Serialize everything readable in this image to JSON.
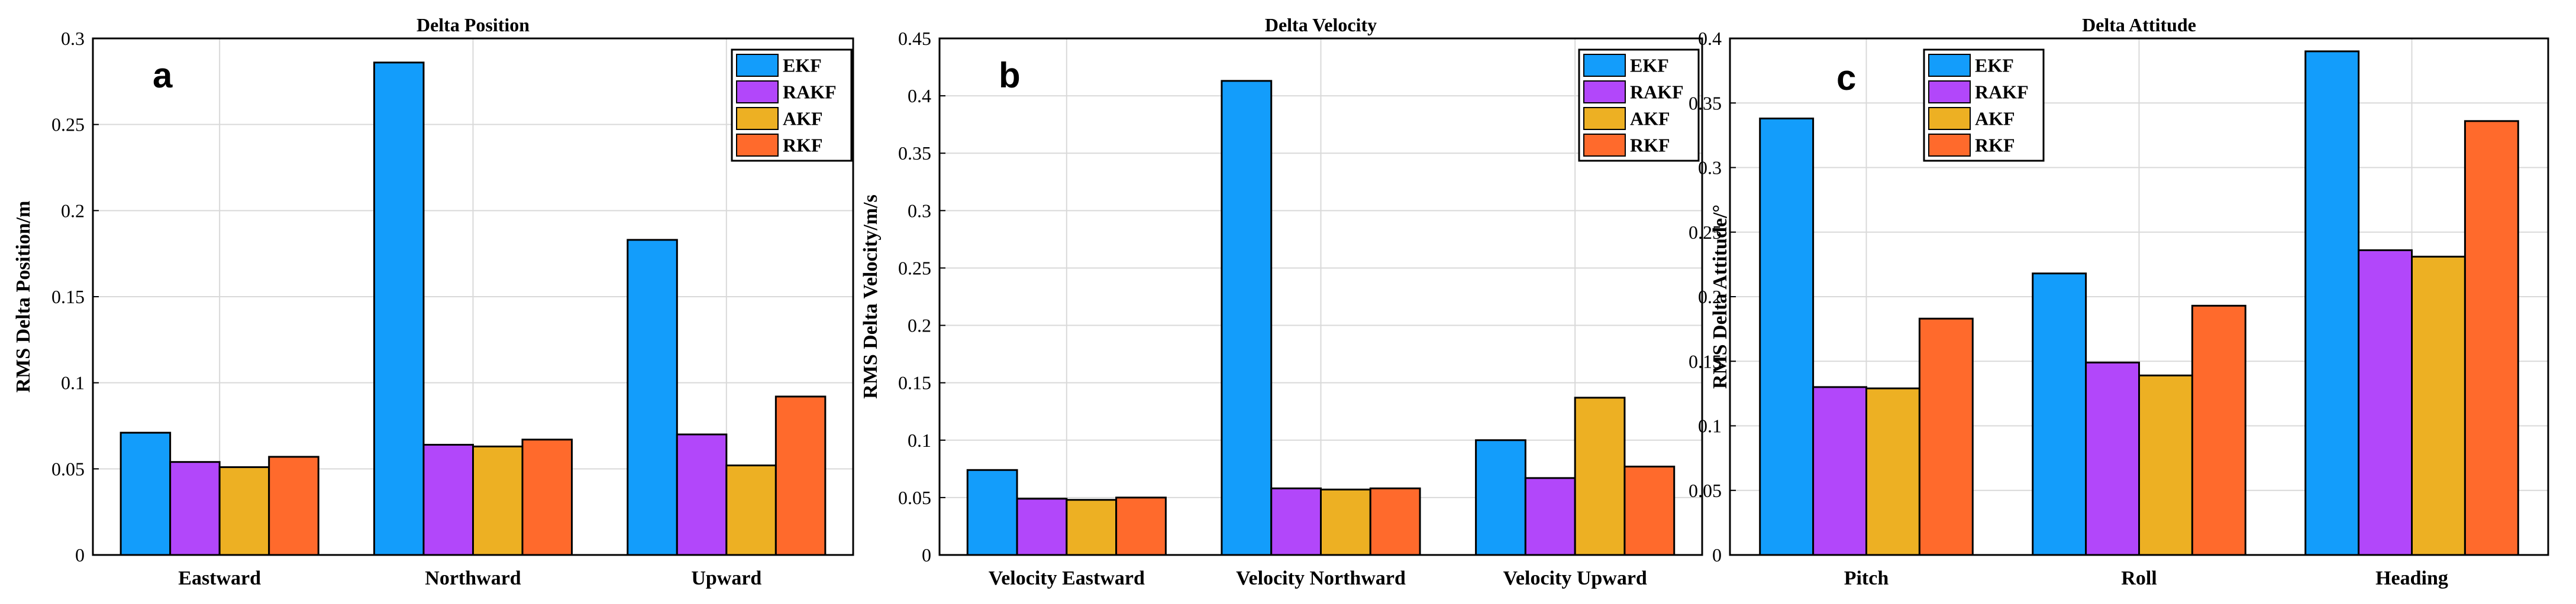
{
  "legend": [
    "EKF",
    "RAKF",
    "AKF",
    "RKF"
  ],
  "colors": {
    "EKF": "#139dfb",
    "RAKF": "#b247fa",
    "AKF": "#edb023",
    "RKF": "#ff6a2c"
  },
  "chart_data": [
    {
      "type": "bar",
      "panel_label": "a",
      "title": "Delta Position",
      "ylabel": "RMS Delta Position/m",
      "xlabel": "",
      "categories": [
        "Eastward",
        "Northward",
        "Upward"
      ],
      "ylim": [
        0,
        0.3
      ],
      "yticks": [
        0,
        0.05,
        0.1,
        0.15,
        0.2,
        0.25,
        0.3
      ],
      "ytick_labels": [
        "0",
        "0.05",
        "0.1",
        "0.15",
        "0.2",
        "0.25",
        "0.3"
      ],
      "legend_position": "top-right",
      "grid": true,
      "series": [
        {
          "name": "EKF",
          "values": [
            0.071,
            0.286,
            0.183
          ]
        },
        {
          "name": "RAKF",
          "values": [
            0.054,
            0.064,
            0.07
          ]
        },
        {
          "name": "AKF",
          "values": [
            0.051,
            0.063,
            0.052
          ]
        },
        {
          "name": "RKF",
          "values": [
            0.057,
            0.067,
            0.092
          ]
        }
      ]
    },
    {
      "type": "bar",
      "panel_label": "b",
      "title": "Delta Velocity",
      "ylabel": "RMS Delta Velocity/m/s",
      "xlabel": "",
      "categories": [
        "Velocity Eastward",
        "Velocity Northward",
        "Velocity Upward"
      ],
      "ylim": [
        0,
        0.45
      ],
      "yticks": [
        0,
        0.05,
        0.1,
        0.15,
        0.2,
        0.25,
        0.3,
        0.35,
        0.4,
        0.45
      ],
      "ytick_labels": [
        "0",
        "0.05",
        "0.1",
        "0.15",
        "0.2",
        "0.25",
        "0.3",
        "0.35",
        "0.4",
        "0.45"
      ],
      "legend_position": "top-right",
      "grid": true,
      "series": [
        {
          "name": "EKF",
          "values": [
            0.074,
            0.413,
            0.1
          ]
        },
        {
          "name": "RAKF",
          "values": [
            0.049,
            0.058,
            0.067
          ]
        },
        {
          "name": "AKF",
          "values": [
            0.048,
            0.057,
            0.137
          ]
        },
        {
          "name": "RKF",
          "values": [
            0.05,
            0.058,
            0.077
          ]
        }
      ]
    },
    {
      "type": "bar",
      "panel_label": "c",
      "title": "Delta Attitude",
      "ylabel": "RMS Delta Attitude/°",
      "xlabel": "",
      "categories": [
        "Pitch",
        "Roll",
        "Heading"
      ],
      "ylim": [
        0,
        0.4
      ],
      "yticks": [
        0,
        0.05,
        0.1,
        0.15,
        0.2,
        0.25,
        0.3,
        0.35,
        0.4
      ],
      "ytick_labels": [
        "0",
        "0.05",
        "0.1",
        "0.15",
        "0.2",
        "0.25",
        "0.3",
        "0.35",
        "0.4"
      ],
      "legend_position": "top-left",
      "grid": true,
      "series": [
        {
          "name": "EKF",
          "values": [
            0.338,
            0.218,
            0.39
          ]
        },
        {
          "name": "RAKF",
          "values": [
            0.13,
            0.149,
            0.236
          ]
        },
        {
          "name": "AKF",
          "values": [
            0.129,
            0.139,
            0.231
          ]
        },
        {
          "name": "RKF",
          "values": [
            0.183,
            0.193,
            0.336
          ]
        }
      ]
    }
  ]
}
